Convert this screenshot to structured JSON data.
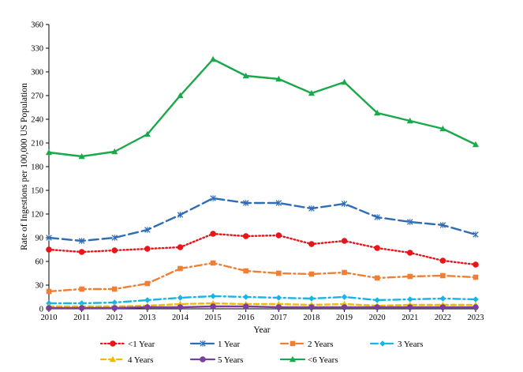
{
  "chart_data": {
    "type": "line",
    "xlabel": "Year",
    "ylabel": "Rate of Ingestions per 100,000 US Population",
    "x": [
      "2010",
      "2011",
      "2012",
      "2013",
      "2014",
      "2015",
      "2016",
      "2017",
      "2018",
      "2019",
      "2020",
      "2021",
      "2022",
      "2023"
    ],
    "ylim": [
      0,
      360
    ],
    "yticks": [
      "0",
      "30",
      "60",
      "90",
      "120",
      "150",
      "180",
      "210",
      "240",
      "270",
      "300",
      "330",
      "360"
    ],
    "grid": false,
    "legend_position": "bottom",
    "series": [
      {
        "name": "<1 Year",
        "color": "#e8141a",
        "dash": "dotted",
        "marker": "circle",
        "values": [
          75,
          72,
          74,
          76,
          78,
          95,
          92,
          93,
          82,
          86,
          77,
          71,
          61,
          56
        ]
      },
      {
        "name": "1  Year",
        "color": "#2e6db5",
        "dash": "longdash",
        "marker": "x",
        "values": [
          90,
          86,
          90,
          100,
          119,
          140,
          134,
          134,
          127,
          133,
          116,
          110,
          106,
          94
        ]
      },
      {
        "name": "2  Years",
        "color": "#ef7f34",
        "dash": "dashdot",
        "marker": "square",
        "values": [
          22,
          25,
          25,
          32,
          51,
          58,
          48,
          45,
          44,
          46,
          39,
          41,
          42,
          40
        ]
      },
      {
        "name": "3  Years",
        "color": "#17b4e8",
        "dash": "dashdot",
        "marker": "diamond",
        "values": [
          7,
          7,
          8,
          11,
          14,
          16,
          15,
          14,
          13,
          15,
          11,
          12,
          13,
          12
        ]
      },
      {
        "name": "4  Years",
        "color": "#f5b800",
        "dash": "dashed",
        "marker": "triangle",
        "values": [
          3,
          3,
          3,
          4,
          6,
          7,
          6,
          6,
          5,
          6,
          4,
          5,
          5,
          5
        ]
      },
      {
        "name": "5  Years",
        "color": "#7a3f9c",
        "dash": "solid",
        "marker": "circle",
        "values": [
          1,
          1,
          1,
          2,
          2,
          3,
          3,
          2,
          2,
          2,
          2,
          2,
          2,
          2
        ]
      },
      {
        "name": "<6 Years",
        "color": "#1aa84b",
        "dash": "solid",
        "marker": "triangle",
        "values": [
          198,
          193,
          199,
          221,
          270,
          316,
          295,
          291,
          273,
          287,
          248,
          238,
          228,
          208
        ]
      }
    ]
  }
}
